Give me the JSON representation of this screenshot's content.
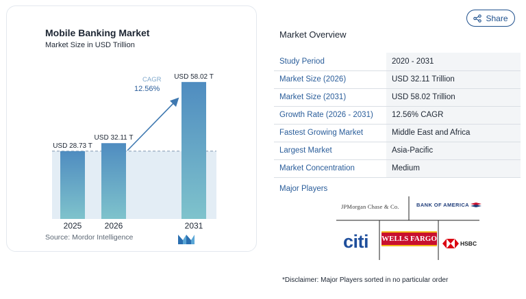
{
  "chart": {
    "title": "Mobile Banking Market",
    "subtitle": "Market Size in USD Trillion",
    "source": "Source: Mordor Intelligence",
    "cagr_label": "CAGR",
    "cagr_value": "12.56%"
  },
  "chart_data": {
    "type": "bar",
    "title": "Mobile Banking Market",
    "subtitle": "Market Size in USD Trillion",
    "categories": [
      "2025",
      "2026",
      "2031"
    ],
    "values": [
      28.73,
      32.11,
      58.02
    ],
    "data_labels": [
      "USD 28.73 T",
      "USD 32.11 T",
      "USD 58.02 T"
    ],
    "unit": "USD Trillion",
    "annotation": {
      "label": "CAGR",
      "value": "12.56%"
    },
    "grid": false,
    "bar_color": "#5b9bc9"
  },
  "share": {
    "label": "Share",
    "icon": "share-icon"
  },
  "overview": {
    "title": "Market Overview",
    "rows": [
      {
        "label": "Study Period",
        "value": "2020 - 2031"
      },
      {
        "label": "Market Size (2026)",
        "value": "USD 32.11 Trillion"
      },
      {
        "label": "Market Size (2031)",
        "value": "USD 58.02 Trillion"
      },
      {
        "label": "Growth Rate (2026 - 2031)",
        "value": "12.56% CAGR"
      },
      {
        "label": "Fastest Growing Market",
        "value": "Middle East and Africa"
      },
      {
        "label": "Largest Market",
        "value": "Asia-Pacific"
      },
      {
        "label": "Market Concentration",
        "value": "Medium"
      }
    ]
  },
  "players": {
    "title": "Major Players",
    "logos": {
      "jpmorgan": "JPMorgan Chase & Co.",
      "bofa": "BANK OF AMERICA",
      "citi": "citi",
      "wells_fargo": "WELLS FARGO",
      "hsbc": "HSBC"
    }
  },
  "disclaimer": "*Disclaimer: Major Players sorted in no particular order",
  "colors": {
    "accent": "#1d4f8c",
    "label_blue": "#2a5d9a",
    "bar": "#5b9bc9",
    "wells_red": "#c8102e"
  }
}
